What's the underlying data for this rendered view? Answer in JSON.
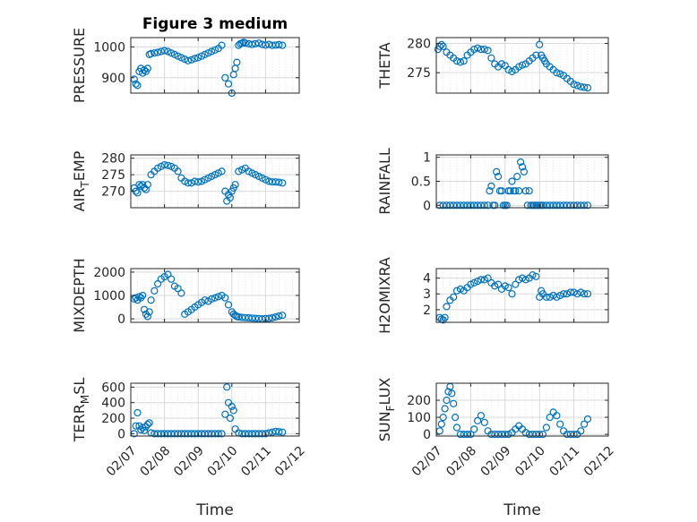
{
  "figure_title": "Figure 3 medium",
  "colors": {
    "marker": "#0072BD",
    "axis": "#262626",
    "grid": "#d9d9d9"
  },
  "chart_data": [
    {
      "id": "pressure",
      "type": "scatter",
      "title": "Figure 3 medium",
      "ylabel": "PRESSURE",
      "ylabel_sub": null,
      "xlim": [
        0,
        5
      ],
      "ylim": [
        850,
        1030
      ],
      "yticks": [
        900,
        1000
      ],
      "ytick_labels": [
        "900",
        "1000"
      ],
      "xticks": [
        0,
        1,
        2,
        3,
        4,
        5
      ],
      "xtick_labels": [],
      "xlabel": "",
      "grid": true,
      "x": [
        0.1,
        0.15,
        0.2,
        0.25,
        0.3,
        0.35,
        0.4,
        0.45,
        0.5,
        0.55,
        0.6,
        0.7,
        0.8,
        0.9,
        1.0,
        1.1,
        1.2,
        1.3,
        1.4,
        1.5,
        1.6,
        1.7,
        1.8,
        1.9,
        2.0,
        2.1,
        2.2,
        2.3,
        2.4,
        2.5,
        2.6,
        2.7,
        2.8,
        2.9,
        3.0,
        3.05,
        3.1,
        3.15,
        3.2,
        3.25,
        3.3,
        3.35,
        3.4,
        3.5,
        3.6,
        3.7,
        3.8,
        3.9,
        4.0,
        4.1,
        4.2,
        4.3,
        4.4,
        4.5
      ],
      "y": [
        895,
        880,
        875,
        920,
        930,
        915,
        925,
        920,
        930,
        975,
        978,
        980,
        982,
        985,
        988,
        985,
        980,
        975,
        970,
        965,
        960,
        955,
        958,
        962,
        965,
        970,
        975,
        980,
        985,
        990,
        995,
        1005,
        900,
        880,
        850,
        910,
        930,
        950,
        1005,
        1010,
        1012,
        1015,
        1012,
        1010,
        1008,
        1010,
        1012,
        1008,
        1006,
        1008,
        1005,
        1006,
        1007,
        1005
      ]
    },
    {
      "id": "theta",
      "type": "scatter",
      "title": "",
      "ylabel": "THETA",
      "ylabel_sub": null,
      "xlim": [
        0,
        5
      ],
      "ylim": [
        271.5,
        281
      ],
      "yticks": [
        275,
        280
      ],
      "ytick_labels": [
        "275",
        "280"
      ],
      "xticks": [
        0,
        1,
        2,
        3,
        4,
        5
      ],
      "xtick_labels": [],
      "xlabel": "",
      "grid": true,
      "x": [
        0.05,
        0.1,
        0.15,
        0.2,
        0.3,
        0.4,
        0.5,
        0.6,
        0.7,
        0.8,
        0.9,
        1.0,
        1.1,
        1.2,
        1.3,
        1.4,
        1.5,
        1.6,
        1.7,
        1.8,
        1.9,
        2.0,
        2.1,
        2.2,
        2.3,
        2.4,
        2.5,
        2.6,
        2.7,
        2.8,
        2.9,
        3.0,
        3.05,
        3.1,
        3.15,
        3.2,
        3.3,
        3.4,
        3.5,
        3.6,
        3.7,
        3.8,
        3.9,
        4.0,
        4.1,
        4.2,
        4.3,
        4.4
      ],
      "y": [
        279,
        279.5,
        279.8,
        279.5,
        278.5,
        278,
        277.5,
        277,
        276.8,
        277,
        278,
        278.5,
        279,
        279.2,
        279,
        279,
        278.8,
        277.5,
        276.5,
        276,
        276.5,
        276.2,
        275.5,
        275.2,
        275.5,
        276,
        276.3,
        276.5,
        277,
        277.5,
        278,
        279.8,
        278,
        277.5,
        277,
        276.5,
        276,
        275.5,
        275,
        274.8,
        274.5,
        274,
        273.5,
        273,
        272.8,
        272.6,
        272.5,
        272.4
      ]
    },
    {
      "id": "air_temp",
      "type": "scatter",
      "title": "",
      "ylabel": "AIR",
      "ylabel_sub": "T",
      "ylabel_tail": "EMP",
      "xlim": [
        0,
        5
      ],
      "ylim": [
        265,
        281
      ],
      "yticks": [
        270,
        275,
        280
      ],
      "ytick_labels": [
        "270",
        "275",
        "280"
      ],
      "xticks": [
        0,
        1,
        2,
        3,
        4,
        5
      ],
      "xtick_labels": [],
      "xlabel": "",
      "grid": true,
      "x": [
        0.1,
        0.15,
        0.2,
        0.25,
        0.3,
        0.35,
        0.4,
        0.45,
        0.5,
        0.6,
        0.7,
        0.8,
        0.9,
        1.0,
        1.1,
        1.2,
        1.3,
        1.4,
        1.5,
        1.6,
        1.7,
        1.8,
        1.9,
        2.0,
        2.1,
        2.2,
        2.3,
        2.4,
        2.5,
        2.6,
        2.7,
        2.8,
        2.85,
        2.9,
        2.95,
        3.0,
        3.05,
        3.1,
        3.2,
        3.3,
        3.4,
        3.5,
        3.6,
        3.7,
        3.8,
        3.9,
        4.0,
        4.1,
        4.2,
        4.3,
        4.4,
        4.5
      ],
      "y": [
        271,
        270,
        269.5,
        272,
        271.5,
        272,
        271,
        270.5,
        272,
        275,
        276,
        277,
        277.5,
        278,
        277.8,
        277.5,
        277,
        276,
        274,
        273,
        272.5,
        272.5,
        273,
        272.8,
        273,
        273.5,
        274,
        274.5,
        275,
        275.5,
        276,
        270,
        267,
        269,
        268,
        270,
        271,
        272,
        276,
        276.5,
        277,
        276,
        275.5,
        275,
        274.5,
        274,
        273.5,
        273,
        272.8,
        272.8,
        272.7,
        272.5
      ]
    },
    {
      "id": "rainfall",
      "type": "scatter",
      "title": "",
      "ylabel": "RAINFALL",
      "ylabel_sub": null,
      "xlim": [
        0,
        5
      ],
      "ylim": [
        -0.05,
        1.05
      ],
      "yticks": [
        0,
        0.5,
        1
      ],
      "ytick_labels": [
        "0",
        "0.5",
        "1"
      ],
      "xticks": [
        0,
        1,
        2,
        3,
        4,
        5
      ],
      "xtick_labels": [],
      "xlabel": "",
      "grid": true,
      "x": [
        0.1,
        0.2,
        0.3,
        0.4,
        0.5,
        0.6,
        0.7,
        0.8,
        0.9,
        1.0,
        1.1,
        1.2,
        1.3,
        1.4,
        1.5,
        1.55,
        1.6,
        1.65,
        1.7,
        1.75,
        1.8,
        1.85,
        1.9,
        1.95,
        2.0,
        2.05,
        2.1,
        2.15,
        2.2,
        2.25,
        2.3,
        2.35,
        2.4,
        2.45,
        2.5,
        2.55,
        2.6,
        2.65,
        2.7,
        2.75,
        2.8,
        2.85,
        2.9,
        2.95,
        3.0,
        3.05,
        3.1,
        3.2,
        3.3,
        3.4,
        3.5,
        3.6,
        3.7,
        3.8,
        3.9,
        4.0,
        4.1,
        4.2,
        4.3,
        4.4
      ],
      "y": [
        0,
        0,
        0,
        0,
        0,
        0,
        0,
        0,
        0,
        0,
        0,
        0,
        0,
        0,
        0,
        0.3,
        0.4,
        0,
        0,
        0.7,
        0.6,
        0.3,
        0.3,
        0,
        0,
        0,
        0.3,
        0.3,
        0.5,
        0.3,
        0.3,
        0.6,
        0.3,
        0.9,
        0.8,
        0.7,
        0.3,
        0,
        0.3,
        0,
        0,
        0,
        0,
        0,
        0,
        0,
        0,
        0,
        0,
        0,
        0,
        0,
        0,
        0,
        0,
        0,
        0,
        0,
        0,
        0
      ]
    },
    {
      "id": "mixdepth",
      "type": "scatter",
      "title": "",
      "ylabel": "MIXDEPTH",
      "ylabel_sub": null,
      "xlim": [
        0,
        5
      ],
      "ylim": [
        -150,
        2150
      ],
      "yticks": [
        0,
        1000,
        2000
      ],
      "ytick_labels": [
        "0",
        "1000",
        "2000"
      ],
      "xticks": [
        0,
        1,
        2,
        3,
        4,
        5
      ],
      "xtick_labels": [],
      "xlabel": "",
      "grid": true,
      "x": [
        0.1,
        0.15,
        0.2,
        0.25,
        0.3,
        0.35,
        0.4,
        0.45,
        0.5,
        0.55,
        0.6,
        0.7,
        0.8,
        0.9,
        1.0,
        1.1,
        1.2,
        1.3,
        1.4,
        1.5,
        1.6,
        1.7,
        1.8,
        1.9,
        2.0,
        2.1,
        2.2,
        2.3,
        2.4,
        2.5,
        2.6,
        2.7,
        2.8,
        2.9,
        3.0,
        3.05,
        3.1,
        3.15,
        3.2,
        3.3,
        3.4,
        3.5,
        3.6,
        3.7,
        3.8,
        3.9,
        4.0,
        4.1,
        4.2,
        4.3,
        4.4,
        4.5
      ],
      "y": [
        850,
        900,
        800,
        950,
        900,
        1000,
        400,
        200,
        100,
        300,
        800,
        1200,
        1500,
        1700,
        1800,
        1900,
        1700,
        1400,
        1300,
        1100,
        200,
        300,
        400,
        500,
        600,
        700,
        800,
        750,
        850,
        900,
        950,
        1000,
        900,
        600,
        300,
        200,
        150,
        100,
        80,
        60,
        50,
        40,
        30,
        20,
        10,
        0,
        10,
        20,
        40,
        80,
        120,
        150
      ]
    },
    {
      "id": "h2omixra",
      "type": "scatter",
      "title": "",
      "ylabel": "H2OMIXRA",
      "ylabel_sub": null,
      "xlim": [
        0,
        5
      ],
      "ylim": [
        1.2,
        4.6
      ],
      "yticks": [
        2,
        3,
        4
      ],
      "ytick_labels": [
        "2",
        "3",
        "4"
      ],
      "xticks": [
        0,
        1,
        2,
        3,
        4,
        5
      ],
      "xtick_labels": [],
      "xlabel": "",
      "grid": true,
      "x": [
        0.1,
        0.15,
        0.2,
        0.25,
        0.3,
        0.4,
        0.5,
        0.6,
        0.7,
        0.8,
        0.9,
        1.0,
        1.1,
        1.2,
        1.3,
        1.4,
        1.5,
        1.6,
        1.7,
        1.8,
        1.9,
        2.0,
        2.1,
        2.2,
        2.3,
        2.4,
        2.5,
        2.6,
        2.7,
        2.8,
        2.9,
        3.0,
        3.05,
        3.1,
        3.2,
        3.3,
        3.4,
        3.5,
        3.6,
        3.7,
        3.8,
        3.9,
        4.0,
        4.1,
        4.2,
        4.3,
        4.4
      ],
      "y": [
        1.5,
        1.4,
        1.35,
        1.5,
        2.2,
        2.6,
        2.8,
        3.2,
        3.3,
        3.2,
        3.4,
        3.6,
        3.7,
        3.8,
        3.9,
        3.9,
        4.0,
        3.7,
        3.5,
        3.6,
        3.3,
        3.5,
        3.4,
        3.0,
        3.6,
        3.9,
        4.0,
        3.9,
        4.0,
        4.2,
        4.1,
        2.8,
        3.2,
        3.0,
        2.8,
        2.8,
        2.9,
        2.8,
        2.9,
        3.0,
        3.0,
        3.1,
        3.1,
        3.0,
        3.1,
        3.0,
        3.0
      ]
    },
    {
      "id": "terr_msl",
      "type": "scatter",
      "title": "",
      "ylabel": "TERR",
      "ylabel_sub": "M",
      "ylabel_tail": "SL",
      "xlim": [
        0,
        5
      ],
      "ylim": [
        -30,
        650
      ],
      "yticks": [
        0,
        200,
        400,
        600
      ],
      "ytick_labels": [
        "0",
        "200",
        "400",
        "600"
      ],
      "xticks": [
        0,
        1,
        2,
        3,
        4,
        5
      ],
      "xtick_labels": [
        "02/07",
        "02/08",
        "02/09",
        "02/10",
        "02/11",
        "02/12"
      ],
      "xlabel": "Time",
      "grid": true,
      "x": [
        0.1,
        0.15,
        0.2,
        0.25,
        0.3,
        0.35,
        0.4,
        0.45,
        0.5,
        0.55,
        0.6,
        0.7,
        0.8,
        0.9,
        1.0,
        1.1,
        1.2,
        1.3,
        1.4,
        1.5,
        1.6,
        1.7,
        1.8,
        1.9,
        2.0,
        2.1,
        2.2,
        2.3,
        2.4,
        2.5,
        2.6,
        2.7,
        2.8,
        2.85,
        2.9,
        2.95,
        3.0,
        3.05,
        3.1,
        3.2,
        3.3,
        3.4,
        3.5,
        3.6,
        3.7,
        3.8,
        3.9,
        4.0,
        4.1,
        4.2,
        4.3,
        4.4,
        4.5
      ],
      "y": [
        0,
        100,
        270,
        100,
        50,
        80,
        40,
        90,
        120,
        140,
        10,
        0,
        0,
        0,
        0,
        0,
        0,
        0,
        0,
        0,
        0,
        0,
        0,
        0,
        0,
        0,
        0,
        0,
        0,
        0,
        0,
        0,
        250,
        600,
        400,
        200,
        350,
        300,
        60,
        10,
        0,
        0,
        0,
        0,
        0,
        0,
        0,
        0,
        10,
        20,
        30,
        25,
        20
      ]
    },
    {
      "id": "sun_flux",
      "type": "scatter",
      "title": "",
      "ylabel": "SUN",
      "ylabel_sub": "F",
      "ylabel_tail": "LUX",
      "xlim": [
        0,
        5
      ],
      "ylim": [
        -10,
        300
      ],
      "yticks": [
        0,
        100,
        200
      ],
      "ytick_labels": [
        "0",
        "100",
        "200"
      ],
      "xticks": [
        0,
        1,
        2,
        3,
        4,
        5
      ],
      "xtick_labels": [
        "02/07",
        "02/08",
        "02/09",
        "02/10",
        "02/11",
        "02/12"
      ],
      "xlabel": "Time",
      "grid": true,
      "x": [
        0.1,
        0.15,
        0.2,
        0.25,
        0.3,
        0.35,
        0.4,
        0.45,
        0.5,
        0.55,
        0.6,
        0.7,
        0.8,
        0.9,
        1.0,
        1.1,
        1.2,
        1.3,
        1.4,
        1.5,
        1.6,
        1.7,
        1.8,
        1.9,
        2.0,
        2.1,
        2.2,
        2.3,
        2.4,
        2.5,
        2.6,
        2.7,
        2.8,
        2.9,
        3.0,
        3.1,
        3.2,
        3.3,
        3.4,
        3.5,
        3.6,
        3.7,
        3.8,
        3.9,
        4.0,
        4.1,
        4.2,
        4.3,
        4.4
      ],
      "y": [
        20,
        60,
        100,
        150,
        200,
        250,
        280,
        240,
        180,
        100,
        40,
        0,
        0,
        0,
        0,
        30,
        80,
        110,
        70,
        20,
        0,
        0,
        0,
        0,
        0,
        0,
        10,
        30,
        50,
        30,
        10,
        0,
        0,
        0,
        0,
        0,
        40,
        100,
        130,
        110,
        60,
        20,
        0,
        0,
        0,
        0,
        20,
        60,
        90
      ]
    }
  ]
}
